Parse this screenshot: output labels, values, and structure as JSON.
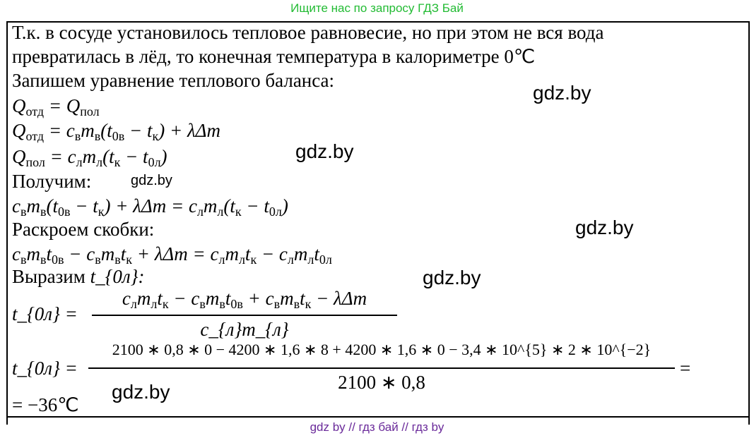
{
  "header": "Ищите нас по запросу ГДЗ Бай",
  "lines": {
    "l1": "Т.к. в сосуде установилось тепловое равновесие, но при этом не вся вода",
    "l2": "превратилась в лёд, то конечная температура в калориметре 0℃",
    "l3": "Запишем уравнение теплового баланса:",
    "l4": "Q_{отд} = Q_{пол}",
    "l5": "Q_{отд} = c_{в}m_{в}(t_{0в} − t_{к}) + λΔm",
    "l6": "Q_{пол} = c_{л}m_{л}(t_{к} − t_{0л})",
    "l7": "Получим:",
    "l8": "c_{в}m_{в}(t_{0в} − t_{к}) + λΔm = c_{л}m_{л}(t_{к} − t_{0л})",
    "l9": "Раскроем скобки:",
    "l10": "c_{в}m_{в}t_{0в} − c_{в}m_{в}t_{к} + λΔm = c_{л}m_{л}t_{к} − c_{л}m_{л}t_{0л}",
    "l11a": "Выразим ",
    "l11b": "t_{0л}:",
    "f1_lhs": "t_{0л} =",
    "f1_num": "c_{л}m_{л}t_{к} − c_{в}m_{в}t_{0в} + c_{в}m_{в}t_{к} − λΔm",
    "f1_den": "c_{л}m_{л}",
    "f2_lhs": "t_{0л} =",
    "f2_num": "2100 ∗ 0,8 ∗ 0 − 4200 ∗ 1,6 ∗ 8 + 4200 ∗ 1,6 ∗ 0 − 3,4 ∗ 10^{5} ∗ 2 ∗ 10^{−2}",
    "f2_den": "2100 ∗ 0,8",
    "f2_eq": "=",
    "result": "= −36℃"
  },
  "watermarks": [
    "gdz.by",
    "gdz.by",
    "gdz.by",
    "gdz.by",
    "gdz.by",
    "gdz.by"
  ],
  "footer": "gdz by  //  гдз бай  //  гдз by"
}
